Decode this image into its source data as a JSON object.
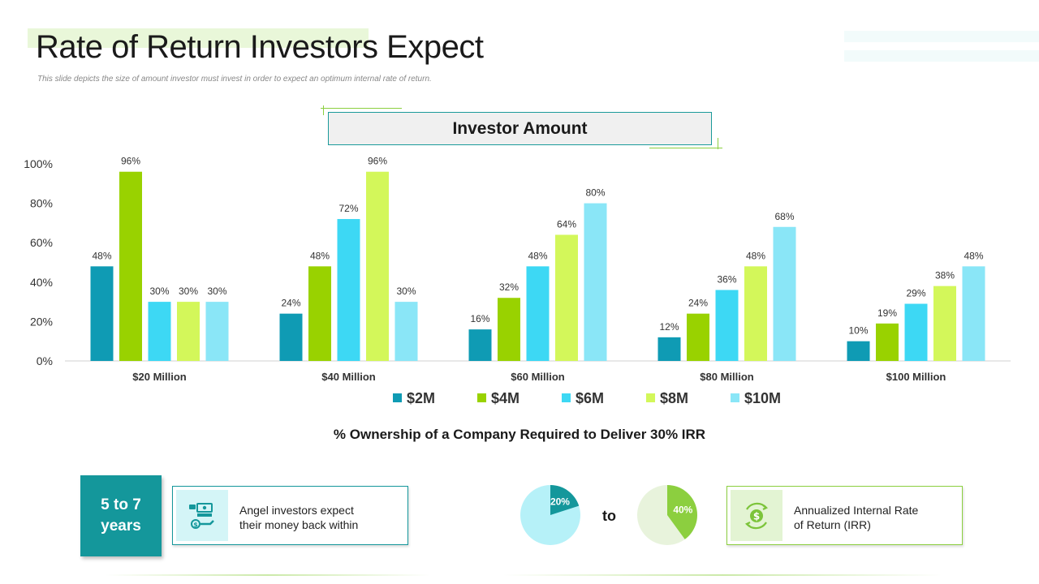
{
  "header": {
    "title": "Rate of Return Investors Expect",
    "subtitle": "This slide depicts the size of amount investor must invest in order to expect an optimum internal rate of return."
  },
  "chart_data": {
    "type": "bar",
    "title": "Investor Amount",
    "xlabel": "% Ownership of a Company Required to Deliver 30% IRR",
    "ylabel": "",
    "ylim": [
      0,
      100
    ],
    "yticks": [
      "0%",
      "20%",
      "40%",
      "60%",
      "80%",
      "100%"
    ],
    "grid": false,
    "legend_position": "bottom",
    "categories": [
      "$20 Million",
      "$40 Million",
      "$60 Million",
      "$80 Million",
      "$100 Million"
    ],
    "series": [
      {
        "name": "$2M",
        "color": "#0f9bb4",
        "values": [
          48,
          24,
          16,
          12,
          10
        ]
      },
      {
        "name": "$4M",
        "color": "#99d200",
        "values": [
          96,
          48,
          32,
          24,
          19
        ]
      },
      {
        "name": "$6M",
        "color": "#3dd8f4",
        "values": [
          30,
          72,
          48,
          36,
          29
        ]
      },
      {
        "name": "$8M",
        "color": "#d3f75a",
        "values": [
          30,
          96,
          64,
          48,
          38
        ]
      },
      {
        "name": "$10M",
        "color": "#8ae6f7",
        "values": [
          30,
          30,
          80,
          68,
          48
        ]
      }
    ]
  },
  "summary": {
    "years_label": "5 to 7 years",
    "years_line1": "5 to 7",
    "years_line2": "years",
    "angel_line1": "Angel investors expect",
    "angel_line2": "their money back within",
    "angel_icon": "money-hand-icon",
    "connector": "to",
    "pie_low": {
      "label": "20%",
      "value": 20,
      "color": "#14979b",
      "rest_color": "#b6f1f8"
    },
    "pie_high": {
      "label": "40%",
      "value": 40,
      "color": "#8ccf3f",
      "rest_color": "#e8f3dc"
    },
    "irr_line1": "Annualized Internal Rate",
    "irr_line2": "of Return (IRR)",
    "irr_icon": "dollar-cycle-icon"
  }
}
